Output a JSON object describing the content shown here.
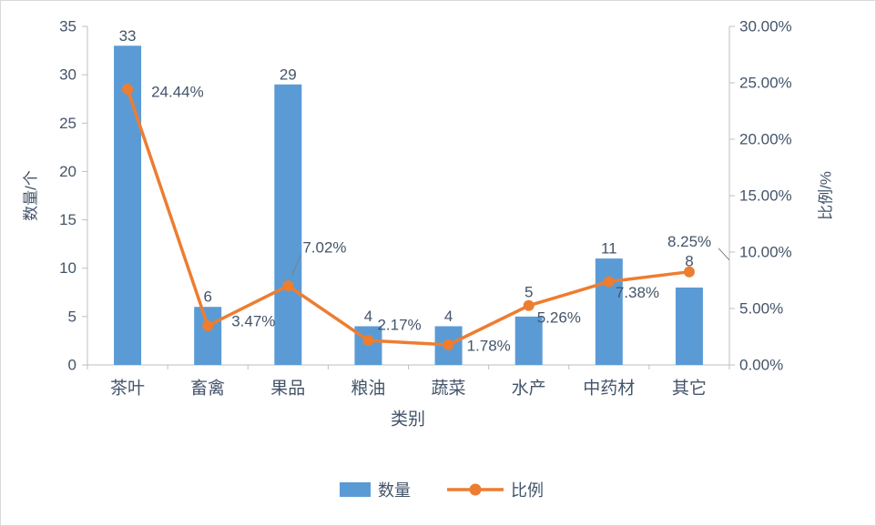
{
  "chart_data": {
    "type": "bar",
    "subtype": "bar+line-combo",
    "categories": [
      "茶叶",
      "畜禽",
      "果品",
      "粮油",
      "蔬菜",
      "水产",
      "中药材",
      "其它"
    ],
    "series": [
      {
        "name": "数量",
        "type": "bar",
        "axis": "left",
        "color": "#5B9BD5",
        "values": [
          33,
          6,
          29,
          4,
          4,
          5,
          11,
          8
        ],
        "labels": [
          "33",
          "6",
          "29",
          "4",
          "4",
          "5",
          "11",
          "8"
        ]
      },
      {
        "name": "比例",
        "type": "line",
        "axis": "right",
        "color": "#ED7D31",
        "values": [
          24.44,
          3.47,
          7.02,
          2.17,
          1.78,
          5.26,
          7.38,
          8.25
        ],
        "labels": [
          "24.44%",
          "3.47%",
          "7.02%",
          "2.17%",
          "1.78%",
          "5.26%",
          "7.38%",
          "8.25%"
        ]
      }
    ],
    "xlabel": "类别",
    "ylabel_left": "数量/个",
    "ylabel_right": "比例/%",
    "y_left": {
      "min": 0,
      "max": 35,
      "step": 5,
      "tick_labels": [
        "0",
        "5",
        "10",
        "15",
        "20",
        "25",
        "30",
        "35"
      ]
    },
    "y_right": {
      "min": 0,
      "max": 30,
      "step": 5,
      "tick_labels": [
        "0.00%",
        "5.00%",
        "10.00%",
        "15.00%",
        "20.00%",
        "25.00%",
        "30.00%"
      ]
    },
    "grid": false,
    "legend_position": "bottom",
    "legend": [
      "数量",
      "比例"
    ]
  },
  "colors": {
    "bar": "#5B9BD5",
    "line": "#ED7D31",
    "text": "#44546A",
    "axis": "#BFBFBF",
    "leader": "#7F7F7F",
    "background": "#FFFFFF",
    "border": "#D9D9D9"
  }
}
